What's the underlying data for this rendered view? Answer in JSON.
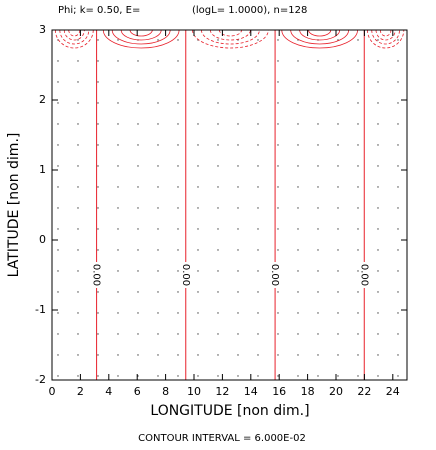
{
  "chart_data": {
    "type": "contour",
    "title_left": "Phi; k= 0.50, E=",
    "title_right": "(logL= 1.0000), n=128",
    "xlabel": "LONGITUDE [non dim.]",
    "ylabel": "LATITUDE [non dim.]",
    "footer": "CONTOUR INTERVAL = 6.000E-02",
    "xlim": [
      0,
      25
    ],
    "ylim": [
      -2,
      3
    ],
    "xticks": [
      0,
      2,
      4,
      6,
      8,
      10,
      12,
      14,
      16,
      18,
      20,
      22,
      24
    ],
    "yticks": [
      -2,
      -1,
      0,
      1,
      2,
      3
    ],
    "zero_lines": {
      "x": [
        3.14,
        9.42,
        15.71,
        21.99
      ],
      "label": "0.00",
      "label_y": -0.5
    },
    "color": "#e8212b"
  }
}
